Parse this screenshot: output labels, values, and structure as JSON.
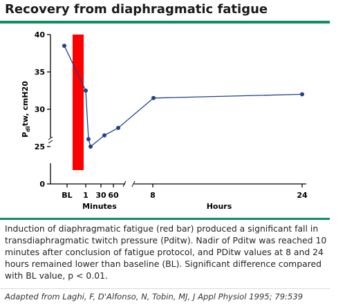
{
  "header": {
    "title": "Recovery from diaphragmatic fatigue"
  },
  "chart_data": {
    "type": "line",
    "ylabel": "P",
    "ylabel_sub": "di",
    "ylabel_rest": "tw, cmH20",
    "ylim": [
      0,
      40
    ],
    "yticks": [
      "0",
      "25",
      "30",
      "35",
      "40"
    ],
    "xticks": [
      "BL",
      "1",
      "30",
      "60",
      "8",
      "24"
    ],
    "xgroup_labels": [
      "Minutes",
      "Hours"
    ],
    "fatigue_bar": {
      "color": "#ff0000",
      "from": 19,
      "to": 40
    },
    "series": [
      {
        "color": "#1f3f8f",
        "points": [
          {
            "x": "BL",
            "y": 38.5
          },
          {
            "x": "1 min",
            "y": 32.5
          },
          {
            "x": "5 min",
            "y": 26
          },
          {
            "x": "10 min",
            "y": 25
          },
          {
            "x": "30 min",
            "y": 26.5
          },
          {
            "x": "60 min",
            "y": 27.5
          },
          {
            "x": "8 h",
            "y": 31.5
          },
          {
            "x": "24 h",
            "y": 32
          }
        ]
      }
    ]
  },
  "caption": "Induction of diaphragmatic fatigue (red bar) produced a significant fall in transdiaphragmatic twitch pressure (Pditw). Nadir of Pditw was reached 10 minutes after conclusion of fatigue protocol, and PDitw values at 8 and 24 hours remained lower than baseline (BL). Significant difference compared with BL value, p < 0.01.",
  "source": "Adapted from Laghi, F, D'Alfonso, N, Tobin, MJ, J Appl Physiol 1995; 79:539"
}
